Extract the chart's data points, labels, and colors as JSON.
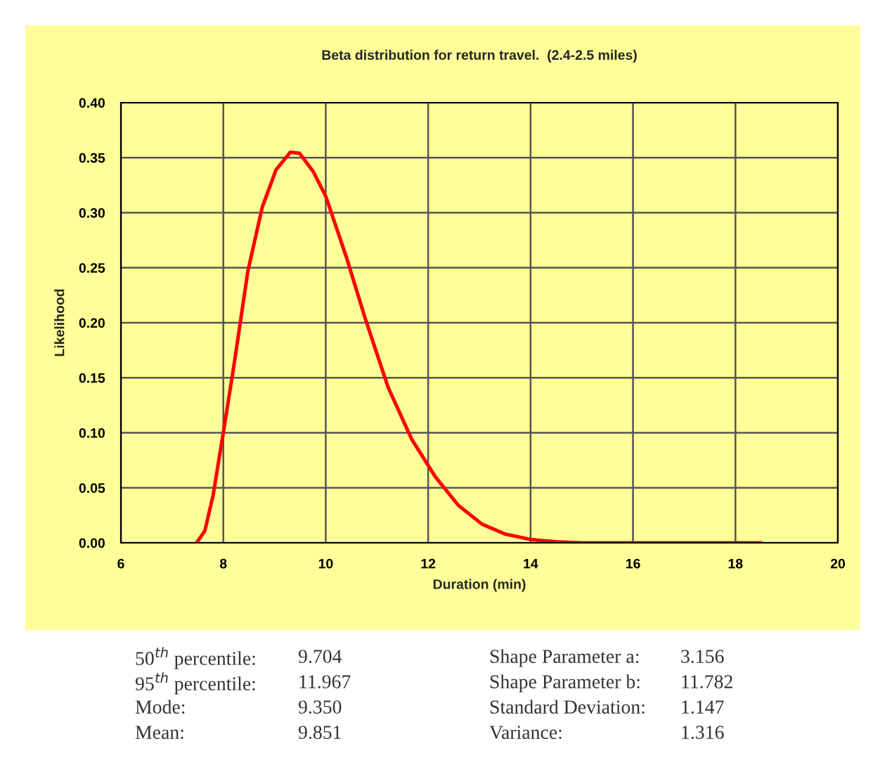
{
  "chart_data": {
    "type": "line",
    "title": "Beta distribution for return travel.  (2.4-2.5 miles)",
    "xlabel": "Duration (min)",
    "ylabel": "Likelihood",
    "series": [
      {
        "color": "#ff0000",
        "x": [
          7.48,
          7.64,
          7.8,
          8.0,
          8.21,
          8.48,
          8.76,
          9.03,
          9.31,
          9.49,
          9.76,
          10.0,
          10.4,
          10.77,
          11.22,
          11.68,
          12.14,
          12.59,
          13.05,
          13.5,
          14.0,
          14.5,
          15.0,
          16.0,
          17.0,
          18.5
        ],
        "values": [
          0,
          0.011,
          0.043,
          0.1,
          0.162,
          0.247,
          0.305,
          0.339,
          0.355,
          0.354,
          0.337,
          0.315,
          0.26,
          0.204,
          0.141,
          0.094,
          0.06,
          0.034,
          0.017,
          0.008,
          0.003,
          0.001,
          0,
          0,
          0,
          0
        ]
      }
    ],
    "xlim": [
      6,
      20
    ],
    "xticks": [
      6,
      8,
      10,
      12,
      14,
      16,
      18,
      20
    ],
    "ylim": [
      0,
      0.4
    ],
    "yticks": [
      {
        "value": 0,
        "label": "0.00"
      },
      {
        "value": 0.05,
        "label": "0.05"
      },
      {
        "value": 0.1,
        "label": "0.10"
      },
      {
        "value": 0.15,
        "label": "0.15"
      },
      {
        "value": 0.2,
        "label": "0.20"
      },
      {
        "value": 0.25,
        "label": "0.25"
      },
      {
        "value": 0.3,
        "label": "0.30"
      },
      {
        "value": 0.35,
        "label": "0.35"
      },
      {
        "value": 0.4,
        "label": "0.40"
      }
    ],
    "grid": true,
    "marker": "none",
    "line_style": "solid",
    "annotations": [
      "50$^{th}$ percentile:",
      "9.704",
      "Shape Parameter a:",
      "3.156",
      "95$^{th}$ percentile:",
      "11.967",
      "Shape Parameter b:",
      "11.782",
      "Mode:",
      "9.350",
      "Standard Deviation:",
      "1.147",
      "Mean:",
      "9.851",
      "Variance:",
      "1.316"
    ]
  }
}
